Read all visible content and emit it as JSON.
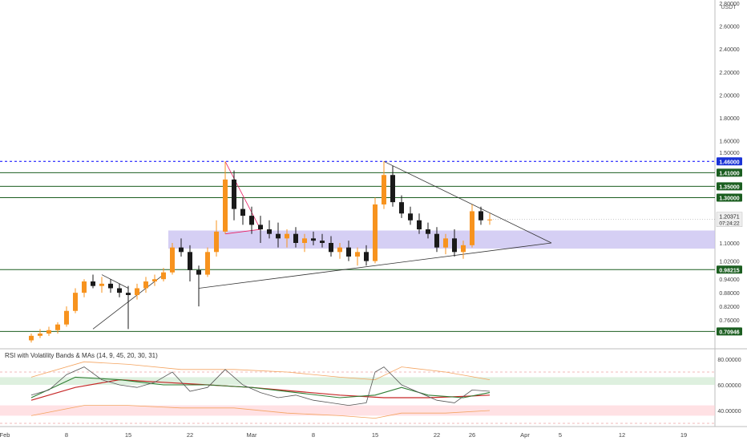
{
  "price_panel": {
    "currency": "USDT",
    "scale_ticks": [
      "2.80000",
      "2.60000",
      "2.40000",
      "2.20000",
      "2.00000",
      "1.80000",
      "1.60000",
      "1.50000",
      "1.10000",
      "1.02000",
      "0.94000",
      "0.88000",
      "0.82000",
      "0.76000"
    ],
    "levels": [
      {
        "label": "1.46000",
        "value": 1.46,
        "style": "dashed",
        "color": "#0000ff"
      },
      {
        "label": "1.41000",
        "value": 1.41,
        "style": "solid",
        "color": "#1b5e20"
      },
      {
        "label": "1.35000",
        "value": 1.35,
        "style": "solid",
        "color": "#1b5e20"
      },
      {
        "label": "1.30000",
        "value": 1.3,
        "style": "solid",
        "color": "#1b5e20"
      },
      {
        "label": "0.98215",
        "value": 0.98215,
        "style": "solid",
        "color": "#1b5e20"
      },
      {
        "label": "0.70946",
        "value": 0.70946,
        "style": "solid",
        "color": "#1b5e20"
      }
    ],
    "current_price": "1.20371",
    "countdown": "07:24:22",
    "zone": {
      "low": 1.075,
      "high": 1.155,
      "color": "#c7bff0"
    }
  },
  "indicator_panel": {
    "title": "RSI with Volatility Bands & MAs (14, 9, 45, 20, 30, 31)",
    "ticks": [
      "80.00000",
      "60.00000",
      "40.00000"
    ],
    "tick_values": [
      80,
      60,
      40
    ]
  },
  "x_axis": {
    "labels": [
      "Feb",
      "8",
      "15",
      "22",
      "Mar",
      "8",
      "15",
      "22",
      "26",
      "Apr",
      "5",
      "12",
      "19"
    ],
    "day_index": [
      0,
      7,
      14,
      21,
      28,
      35,
      42,
      49,
      53,
      59,
      63,
      70,
      77
    ]
  },
  "colors": {
    "up": "#f7931e",
    "down": "#1a1a1a",
    "rsi": "#555555",
    "ma_green": "#2e7d32",
    "ma_red": "#c62828",
    "band": "#f4a460"
  },
  "chart_data": {
    "type": "candlestick",
    "x_unit": "day index from Feb 1",
    "candles": [
      [
        3,
        0.67,
        0.7,
        0.66,
        0.69
      ],
      [
        4,
        0.69,
        0.72,
        0.68,
        0.7
      ],
      [
        5,
        0.7,
        0.73,
        0.69,
        0.715
      ],
      [
        6,
        0.715,
        0.75,
        0.7,
        0.74
      ],
      [
        7,
        0.74,
        0.82,
        0.73,
        0.8
      ],
      [
        8,
        0.8,
        0.9,
        0.79,
        0.88
      ],
      [
        9,
        0.88,
        0.94,
        0.86,
        0.93
      ],
      [
        10,
        0.93,
        0.96,
        0.9,
        0.91
      ],
      [
        11,
        0.91,
        0.95,
        0.88,
        0.92
      ],
      [
        12,
        0.92,
        0.94,
        0.88,
        0.9
      ],
      [
        13,
        0.9,
        0.92,
        0.86,
        0.88
      ],
      [
        14,
        0.88,
        0.91,
        0.72,
        0.87
      ],
      [
        15,
        0.87,
        0.92,
        0.85,
        0.9
      ],
      [
        16,
        0.9,
        0.95,
        0.88,
        0.93
      ],
      [
        17,
        0.93,
        0.96,
        0.91,
        0.94
      ],
      [
        18,
        0.94,
        0.99,
        0.93,
        0.97
      ],
      [
        19,
        0.97,
        1.1,
        0.96,
        1.08
      ],
      [
        20,
        1.08,
        1.12,
        1.04,
        1.06
      ],
      [
        21,
        1.06,
        1.09,
        0.93,
        0.98
      ],
      [
        22,
        0.98,
        1.0,
        0.82,
        0.96
      ],
      [
        23,
        0.96,
        1.08,
        0.95,
        1.06
      ],
      [
        24,
        1.06,
        1.2,
        1.04,
        1.15
      ],
      [
        25,
        1.15,
        1.46,
        1.14,
        1.38
      ],
      [
        26,
        1.38,
        1.42,
        1.2,
        1.25
      ],
      [
        27,
        1.25,
        1.3,
        1.18,
        1.22
      ],
      [
        28,
        1.22,
        1.26,
        1.14,
        1.18
      ],
      [
        29,
        1.18,
        1.22,
        1.1,
        1.16
      ],
      [
        30,
        1.16,
        1.2,
        1.12,
        1.14
      ],
      [
        31,
        1.14,
        1.19,
        1.08,
        1.12
      ],
      [
        32,
        1.12,
        1.16,
        1.08,
        1.14
      ],
      [
        33,
        1.14,
        1.17,
        1.08,
        1.1
      ],
      [
        34,
        1.1,
        1.14,
        1.06,
        1.12
      ],
      [
        35,
        1.12,
        1.15,
        1.09,
        1.11
      ],
      [
        36,
        1.11,
        1.14,
        1.08,
        1.1
      ],
      [
        37,
        1.1,
        1.13,
        1.04,
        1.06
      ],
      [
        38,
        1.06,
        1.1,
        1.03,
        1.08
      ],
      [
        39,
        1.08,
        1.11,
        1.02,
        1.04
      ],
      [
        40,
        1.04,
        1.08,
        1.0,
        1.06
      ],
      [
        41,
        1.06,
        1.09,
        1.0,
        1.02
      ],
      [
        42,
        1.02,
        1.3,
        1.01,
        1.27
      ],
      [
        43,
        1.27,
        1.46,
        1.25,
        1.4
      ],
      [
        44,
        1.4,
        1.44,
        1.26,
        1.28
      ],
      [
        45,
        1.28,
        1.31,
        1.21,
        1.23
      ],
      [
        46,
        1.23,
        1.26,
        1.18,
        1.2
      ],
      [
        47,
        1.2,
        1.23,
        1.14,
        1.16
      ],
      [
        48,
        1.16,
        1.19,
        1.12,
        1.14
      ],
      [
        49,
        1.14,
        1.17,
        1.06,
        1.08
      ],
      [
        50,
        1.08,
        1.14,
        1.05,
        1.12
      ],
      [
        51,
        1.12,
        1.16,
        1.04,
        1.06
      ],
      [
        52,
        1.06,
        1.11,
        1.03,
        1.09
      ],
      [
        53,
        1.09,
        1.27,
        1.08,
        1.24
      ],
      [
        54,
        1.24,
        1.26,
        1.18,
        1.2
      ],
      [
        55,
        1.2,
        1.23,
        1.18,
        1.20371
      ]
    ],
    "rsi": [
      [
        3,
        52
      ],
      [
        5,
        56
      ],
      [
        7,
        68
      ],
      [
        9,
        74
      ],
      [
        11,
        64
      ],
      [
        13,
        60
      ],
      [
        15,
        58
      ],
      [
        17,
        62
      ],
      [
        19,
        70
      ],
      [
        21,
        55
      ],
      [
        23,
        58
      ],
      [
        25,
        72
      ],
      [
        27,
        60
      ],
      [
        29,
        54
      ],
      [
        31,
        50
      ],
      [
        33,
        52
      ],
      [
        35,
        48
      ],
      [
        37,
        46
      ],
      [
        39,
        44
      ],
      [
        41,
        46
      ],
      [
        42,
        70
      ],
      [
        43,
        74
      ],
      [
        45,
        60
      ],
      [
        47,
        54
      ],
      [
        49,
        48
      ],
      [
        51,
        46
      ],
      [
        53,
        56
      ],
      [
        55,
        55
      ]
    ],
    "rsi_ma_green": [
      [
        3,
        50
      ],
      [
        8,
        66
      ],
      [
        13,
        64
      ],
      [
        18,
        60
      ],
      [
        23,
        60
      ],
      [
        28,
        58
      ],
      [
        33,
        54
      ],
      [
        38,
        50
      ],
      [
        42,
        52
      ],
      [
        45,
        58
      ],
      [
        48,
        52
      ],
      [
        52,
        50
      ],
      [
        55,
        54
      ]
    ],
    "rsi_ma_red": [
      [
        3,
        48
      ],
      [
        8,
        58
      ],
      [
        13,
        64
      ],
      [
        18,
        62
      ],
      [
        23,
        60
      ],
      [
        28,
        58
      ],
      [
        33,
        55
      ],
      [
        38,
        52
      ],
      [
        43,
        50
      ],
      [
        48,
        50
      ],
      [
        52,
        51
      ],
      [
        55,
        52
      ]
    ],
    "band_upper": [
      [
        3,
        66
      ],
      [
        9,
        78
      ],
      [
        14,
        76
      ],
      [
        20,
        72
      ],
      [
        26,
        72
      ],
      [
        32,
        70
      ],
      [
        38,
        66
      ],
      [
        42,
        64
      ],
      [
        45,
        74
      ],
      [
        50,
        70
      ],
      [
        55,
        64
      ]
    ],
    "band_lower": [
      [
        3,
        36
      ],
      [
        9,
        44
      ],
      [
        14,
        44
      ],
      [
        20,
        42
      ],
      [
        26,
        42
      ],
      [
        32,
        38
      ],
      [
        38,
        36
      ],
      [
        42,
        34
      ],
      [
        45,
        38
      ],
      [
        50,
        38
      ],
      [
        55,
        40
      ]
    ]
  }
}
